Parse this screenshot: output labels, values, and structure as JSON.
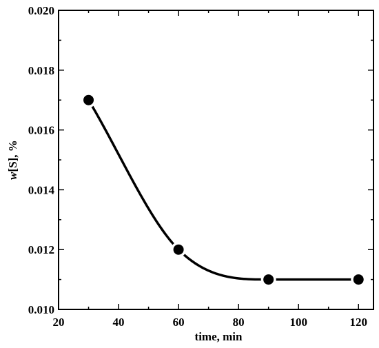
{
  "chart_data": {
    "type": "line",
    "xlabel": "time, min",
    "ylabel_italic": "w",
    "ylabel_rest": "[S], %",
    "xlim": [
      20,
      125
    ],
    "ylim": [
      0.01,
      0.02
    ],
    "x_ticks": [
      20,
      40,
      60,
      80,
      100,
      120
    ],
    "y_ticks": [
      0.01,
      0.012,
      0.014,
      0.016,
      0.018,
      0.02
    ],
    "x_tick_labels": [
      "20",
      "40",
      "60",
      "80",
      "100",
      "120"
    ],
    "y_tick_labels": [
      "0.010",
      "0.012",
      "0.014",
      "0.016",
      "0.018",
      "0.020"
    ],
    "grid": false,
    "legend": "none",
    "series": [
      {
        "x": [
          30,
          60,
          90,
          120
        ],
        "y": [
          0.017,
          0.012,
          0.011,
          0.011
        ],
        "marker": "filled-circle",
        "line": "smooth",
        "color": "#000000"
      }
    ]
  }
}
